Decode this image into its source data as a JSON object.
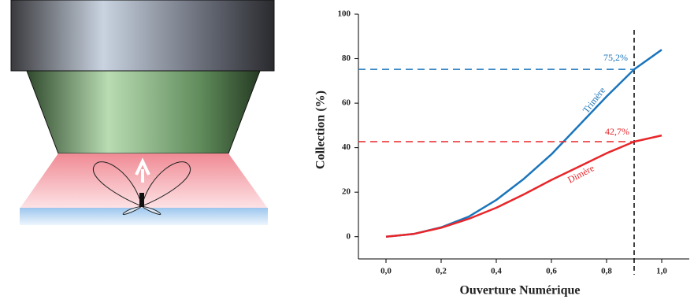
{
  "chart_data": {
    "type": "line",
    "x_label": "Ouverture Numérique",
    "y_label": "Collection (%)",
    "x": [
      0,
      0.1,
      0.2,
      0.3,
      0.4,
      0.5,
      0.6,
      0.7,
      0.8,
      0.9,
      1.0
    ],
    "series": [
      {
        "name": "Trimère",
        "color": "#1b75bc",
        "values": [
          0,
          1.2,
          4.2,
          9,
          16.5,
          26,
          37,
          50,
          63,
          75.2,
          84
        ],
        "value_labels": [
          null,
          null,
          null,
          null,
          null,
          null,
          null,
          null,
          null,
          "75,2%",
          null
        ]
      },
      {
        "name": "Dimère",
        "color": "#e8262a",
        "values": [
          0,
          1.2,
          4,
          8,
          13,
          19,
          25.5,
          31.5,
          37.5,
          42.7,
          45.5
        ],
        "value_labels": [
          null,
          null,
          null,
          null,
          null,
          null,
          null,
          null,
          null,
          "42,7%",
          null
        ]
      }
    ],
    "reference_x": 0.9,
    "xlim": [
      -0.1,
      1.1
    ],
    "ylim": [
      -10,
      100
    ],
    "xticks": [
      {
        "value": 0,
        "label": "0,0"
      },
      {
        "value": 0.2,
        "label": "0,2"
      },
      {
        "value": 0.4,
        "label": "0,4"
      },
      {
        "value": 0.6,
        "label": "0,6"
      },
      {
        "value": 0.8,
        "label": "0,8"
      },
      {
        "value": 1.0,
        "label": "1,0"
      }
    ],
    "yticks": [
      0,
      20,
      40,
      60,
      80,
      100
    ]
  }
}
